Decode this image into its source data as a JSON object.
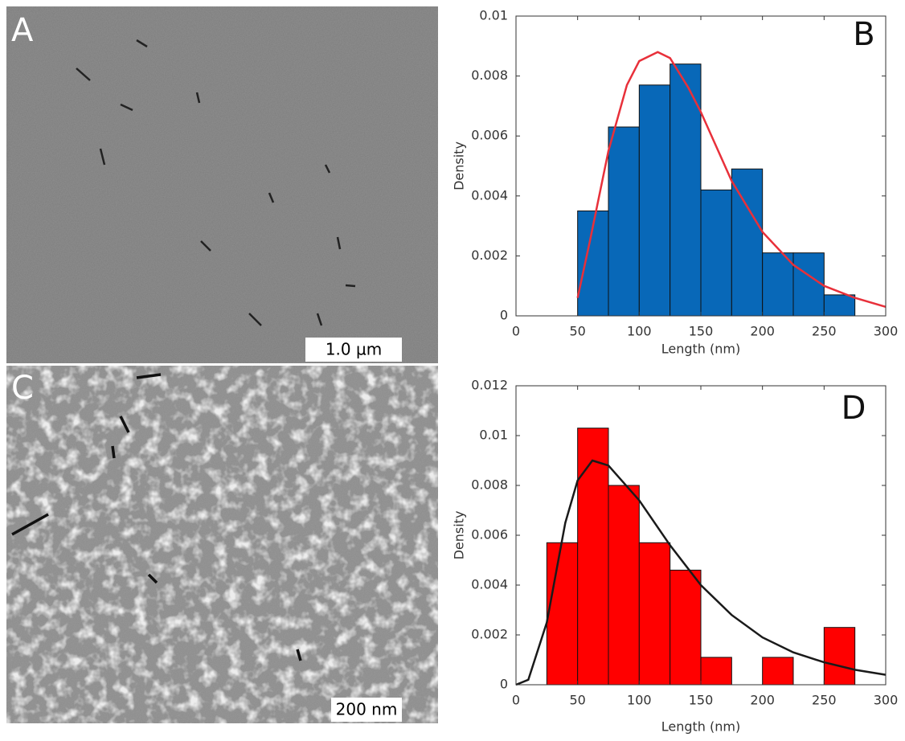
{
  "images": [
    {
      "label": "A",
      "scale_bar": "1.0 µm"
    },
    {
      "label": "C",
      "scale_bar": "200 nm"
    }
  ],
  "chart_data": [
    {
      "type": "histogram",
      "label": "B",
      "xlabel": "Length (nm)",
      "ylabel": "Density",
      "bins": [
        50,
        75,
        100,
        125,
        150,
        175,
        200,
        225,
        250,
        275
      ],
      "values": [
        0.0035,
        0.0063,
        0.0077,
        0.0084,
        0.0042,
        0.0049,
        0.0021,
        0.0021,
        0.0007
      ],
      "color": "#0868b8",
      "fit": {
        "color": "#e8303a",
        "x": [
          50,
          60,
          75,
          90,
          100,
          115,
          125,
          140,
          150,
          175,
          200,
          225,
          250,
          275,
          300
        ],
        "values": [
          0.0006,
          0.0025,
          0.0055,
          0.0077,
          0.0085,
          0.0088,
          0.0086,
          0.0076,
          0.0068,
          0.0045,
          0.0028,
          0.0017,
          0.001,
          0.0006,
          0.0003
        ]
      },
      "xlim": [
        0,
        300
      ],
      "ylim": [
        0,
        0.01
      ],
      "xticks": [
        0,
        50,
        100,
        150,
        200,
        250,
        300
      ],
      "yticks": [
        0,
        0.002,
        0.004,
        0.006,
        0.008,
        0.01
      ]
    },
    {
      "type": "histogram",
      "label": "D",
      "xlabel": "Length (nm)",
      "ylabel": "Density",
      "bins": [
        25,
        50,
        75,
        100,
        125,
        150,
        175,
        200,
        225,
        250,
        275
      ],
      "values": [
        0.0057,
        0.0103,
        0.008,
        0.0057,
        0.0046,
        0.0011,
        0,
        0.0011,
        0,
        0.0023
      ],
      "color": "#ff0000",
      "fit": {
        "color": "#1a1a1a",
        "x": [
          0,
          10,
          25,
          40,
          50,
          62,
          75,
          100,
          125,
          150,
          175,
          200,
          225,
          250,
          275,
          300
        ],
        "values": [
          0,
          0.0002,
          0.0025,
          0.0065,
          0.0082,
          0.009,
          0.0088,
          0.0074,
          0.0056,
          0.004,
          0.0028,
          0.0019,
          0.0013,
          0.0009,
          0.0006,
          0.0004
        ]
      },
      "xlim": [
        0,
        300
      ],
      "ylim": [
        0,
        0.012
      ],
      "xticks": [
        0,
        50,
        100,
        150,
        200,
        250,
        300
      ],
      "yticks": [
        0,
        0.002,
        0.004,
        0.006,
        0.008,
        0.01,
        0.012
      ]
    }
  ]
}
